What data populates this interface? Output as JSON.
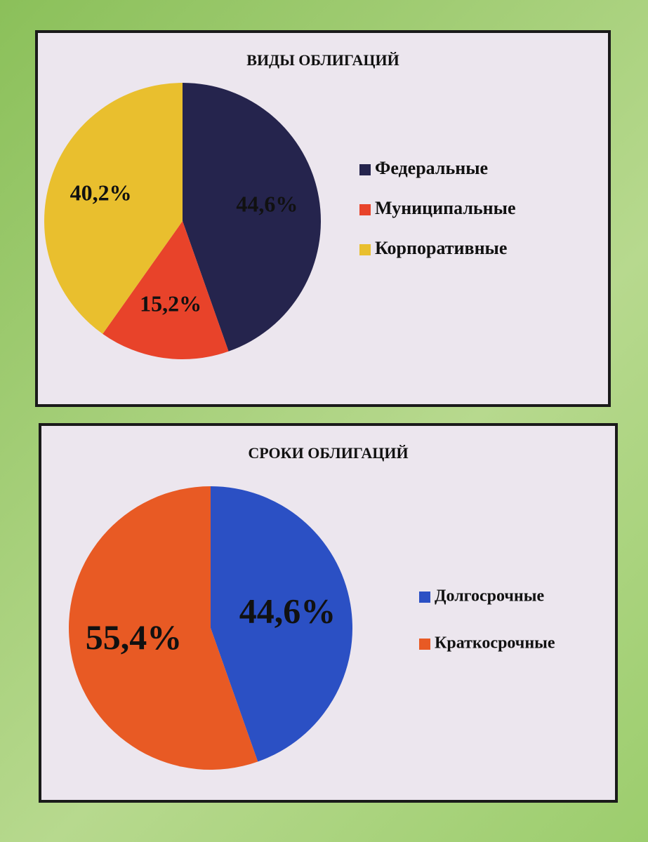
{
  "chart_data": [
    {
      "type": "pie",
      "title": "ВИДЫ ОБЛИГАЦИЙ",
      "categories": [
        "Федеральные",
        "Муниципальные",
        "Корпоративные"
      ],
      "values": [
        44.6,
        15.2,
        40.2
      ],
      "value_labels": [
        "44,6%",
        "15,2%",
        "40,2%"
      ],
      "colors": [
        "#25244d",
        "#e8432a",
        "#e9bf2e"
      ],
      "legend": "right"
    },
    {
      "type": "pie",
      "title": "СРОКИ ОБЛИГАЦИЙ",
      "categories": [
        "Долгосрочные",
        "Краткосрочные"
      ],
      "values": [
        44.6,
        55.4
      ],
      "value_labels": [
        "44,6%",
        "55,4%"
      ],
      "colors": [
        "#2b50c4",
        "#e85a24"
      ],
      "legend": "right"
    }
  ]
}
